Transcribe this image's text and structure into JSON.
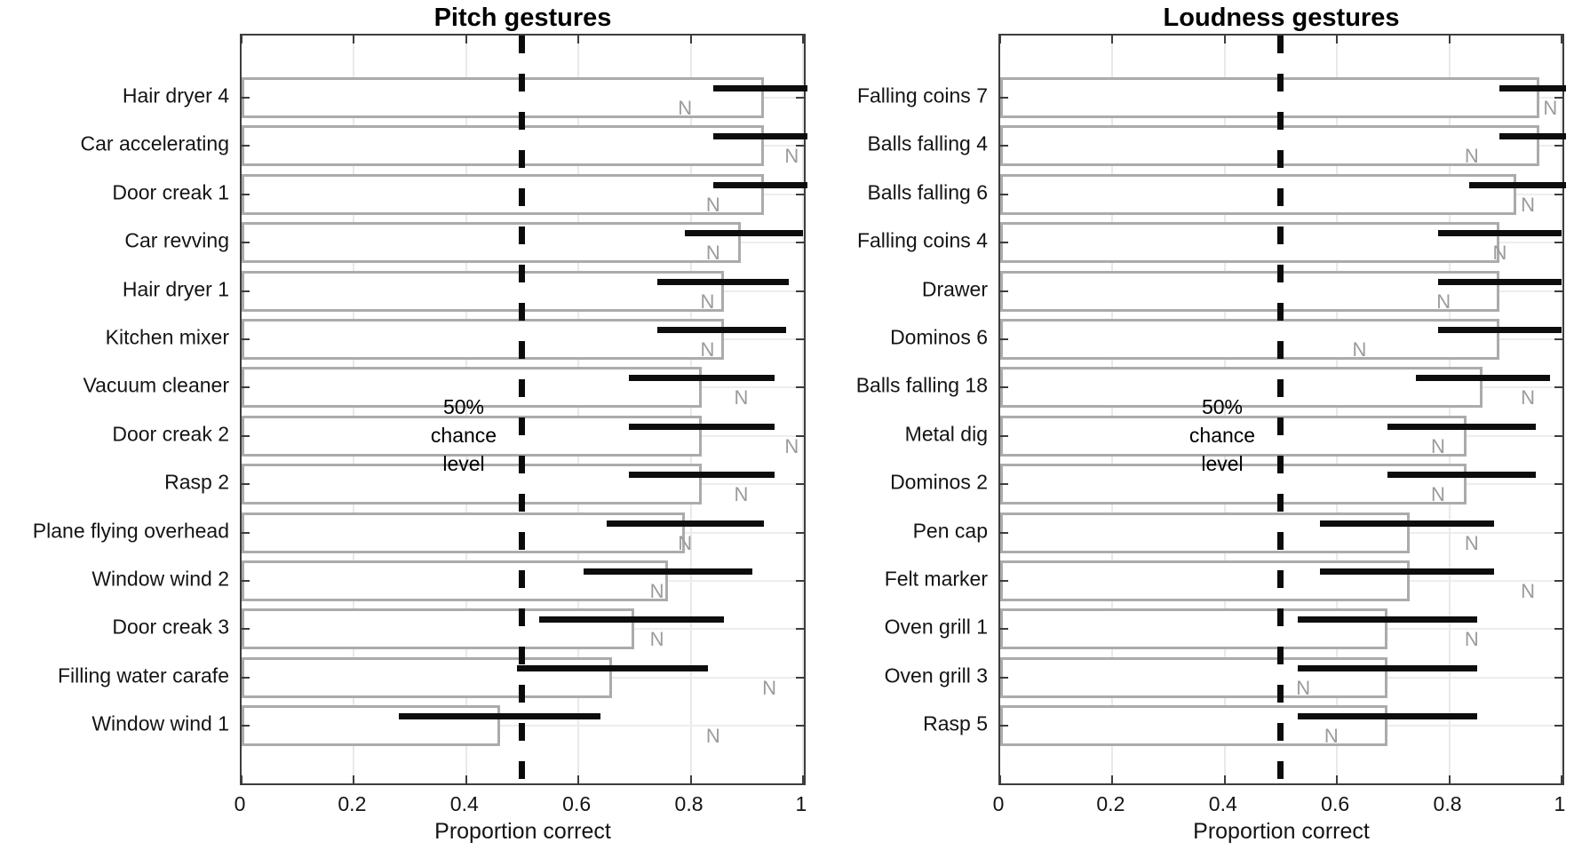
{
  "figure": {
    "marker_letter": "N",
    "chance_annotation_lines": [
      "50%",
      "chance",
      "level"
    ],
    "chance_value": 0.5,
    "colors": {
      "bar_outline": "#ababab",
      "error_bar": "#0d0d0d",
      "n_marker": "#9b9b9b",
      "grid": "#e9e9e9",
      "axis": "#3d3d3d",
      "chance_line": "#0b0b0b"
    }
  },
  "chart_data": [
    {
      "type": "bar",
      "orientation": "horizontal",
      "title": "Pitch gestures",
      "xlabel": "Proportion correct",
      "xlim": [
        0,
        1.008
      ],
      "x_ticks": [
        {
          "value": 0,
          "label": "0"
        },
        {
          "value": 0.2,
          "label": "0.2"
        },
        {
          "value": 0.4,
          "label": "0.4"
        },
        {
          "value": 0.6,
          "label": "0.6"
        },
        {
          "value": 0.8,
          "label": "0.8"
        },
        {
          "value": 1,
          "label": "1"
        }
      ],
      "grid": "on",
      "chance_line": 0.5,
      "rows": [
        {
          "label": "Hair dryer 4",
          "value": 0.93,
          "ci_low": 0.84,
          "ci_high": 1.02,
          "n_marker": 0.79
        },
        {
          "label": "Car accelerating",
          "value": 0.93,
          "ci_low": 0.84,
          "ci_high": 1.02,
          "n_marker": 0.98
        },
        {
          "label": "Door creak 1",
          "value": 0.93,
          "ci_low": 0.84,
          "ci_high": 1.02,
          "n_marker": 0.84
        },
        {
          "label": "Car revving",
          "value": 0.89,
          "ci_low": 0.79,
          "ci_high": 1.0,
          "n_marker": 0.84
        },
        {
          "label": "Hair dryer 1",
          "value": 0.86,
          "ci_low": 0.74,
          "ci_high": 0.975,
          "n_marker": 0.83
        },
        {
          "label": "Kitchen mixer",
          "value": 0.86,
          "ci_low": 0.74,
          "ci_high": 0.97,
          "n_marker": 0.83
        },
        {
          "label": "Vacuum cleaner",
          "value": 0.82,
          "ci_low": 0.69,
          "ci_high": 0.95,
          "n_marker": 0.89
        },
        {
          "label": "Door creak 2",
          "value": 0.82,
          "ci_low": 0.69,
          "ci_high": 0.95,
          "n_marker": 0.98
        },
        {
          "label": "Rasp 2",
          "value": 0.82,
          "ci_low": 0.69,
          "ci_high": 0.95,
          "n_marker": 0.89
        },
        {
          "label": "Plane flying overhead",
          "value": 0.79,
          "ci_low": 0.65,
          "ci_high": 0.93,
          "n_marker": 0.79
        },
        {
          "label": "Window wind 2",
          "value": 0.76,
          "ci_low": 0.61,
          "ci_high": 0.91,
          "n_marker": 0.74
        },
        {
          "label": "Door creak 3",
          "value": 0.7,
          "ci_low": 0.53,
          "ci_high": 0.86,
          "n_marker": 0.74
        },
        {
          "label": "Filling water carafe",
          "value": 0.66,
          "ci_low": 0.49,
          "ci_high": 0.83,
          "n_marker": 0.94
        },
        {
          "label": "Window wind 1",
          "value": 0.46,
          "ci_low": 0.28,
          "ci_high": 0.64,
          "n_marker": 0.84
        }
      ]
    },
    {
      "type": "bar",
      "orientation": "horizontal",
      "title": "Loudness gestures",
      "xlabel": "Proportion correct",
      "xlim": [
        0,
        1.008
      ],
      "x_ticks": [
        {
          "value": 0,
          "label": "0"
        },
        {
          "value": 0.2,
          "label": "0.2"
        },
        {
          "value": 0.4,
          "label": "0.4"
        },
        {
          "value": 0.6,
          "label": "0.6"
        },
        {
          "value": 0.8,
          "label": "0.8"
        },
        {
          "value": 1,
          "label": "1"
        }
      ],
      "grid": "on",
      "chance_line": 0.5,
      "rows": [
        {
          "label": "Falling coins 7",
          "value": 0.96,
          "ci_low": 0.89,
          "ci_high": 1.02,
          "n_marker": 0.98
        },
        {
          "label": "Balls falling 4",
          "value": 0.96,
          "ci_low": 0.89,
          "ci_high": 1.02,
          "n_marker": 0.84
        },
        {
          "label": "Balls falling 6",
          "value": 0.92,
          "ci_low": 0.835,
          "ci_high": 1.01,
          "n_marker": 0.94
        },
        {
          "label": "Falling coins 4",
          "value": 0.89,
          "ci_low": 0.78,
          "ci_high": 1.0,
          "n_marker": 0.89
        },
        {
          "label": "Drawer",
          "value": 0.89,
          "ci_low": 0.78,
          "ci_high": 1.0,
          "n_marker": 0.79
        },
        {
          "label": "Dominos 6",
          "value": 0.89,
          "ci_low": 0.78,
          "ci_high": 1.0,
          "n_marker": 0.64
        },
        {
          "label": "Balls falling 18",
          "value": 0.86,
          "ci_low": 0.74,
          "ci_high": 0.98,
          "n_marker": 0.94
        },
        {
          "label": "Metal dig",
          "value": 0.83,
          "ci_low": 0.69,
          "ci_high": 0.955,
          "n_marker": 0.78
        },
        {
          "label": "Dominos 2",
          "value": 0.83,
          "ci_low": 0.69,
          "ci_high": 0.955,
          "n_marker": 0.78
        },
        {
          "label": "Pen cap",
          "value": 0.73,
          "ci_low": 0.57,
          "ci_high": 0.88,
          "n_marker": 0.84
        },
        {
          "label": "Felt marker",
          "value": 0.73,
          "ci_low": 0.57,
          "ci_high": 0.88,
          "n_marker": 0.94
        },
        {
          "label": "Oven grill 1",
          "value": 0.69,
          "ci_low": 0.53,
          "ci_high": 0.85,
          "n_marker": 0.84
        },
        {
          "label": "Oven grill 3",
          "value": 0.69,
          "ci_low": 0.53,
          "ci_high": 0.85,
          "n_marker": 0.54
        },
        {
          "label": "Rasp 5",
          "value": 0.69,
          "ci_low": 0.53,
          "ci_high": 0.85,
          "n_marker": 0.59
        }
      ]
    }
  ]
}
